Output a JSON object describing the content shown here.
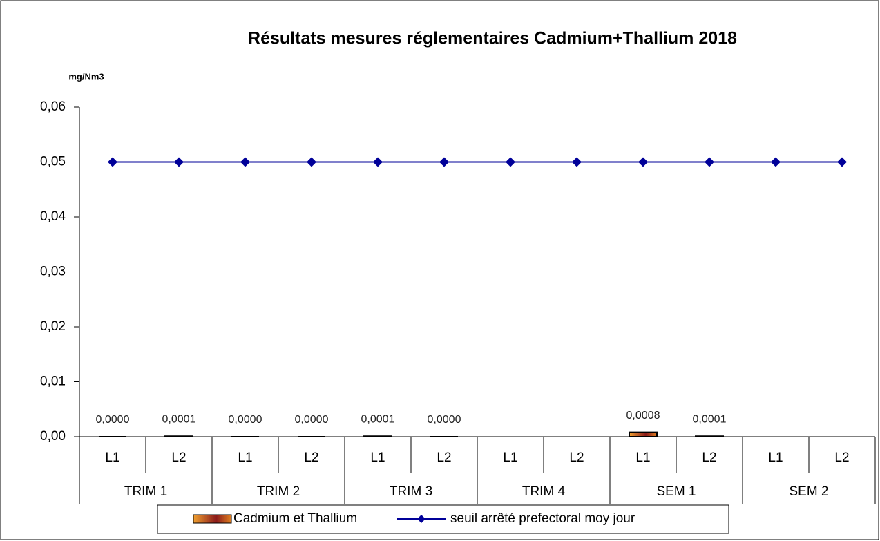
{
  "chart_data": {
    "type": "bar_line",
    "title": "Résultats mesures réglementaires Cadmium+Thallium  2018",
    "y_label": "mg/Nm3",
    "categories": [
      "L1",
      "L2",
      "L1",
      "L2",
      "L1",
      "L2",
      "L1",
      "L2",
      "L1",
      "L2",
      "L1",
      "L2"
    ],
    "groups": [
      "TRIM 1",
      "TRIM 2",
      "TRIM 3",
      "TRIM 4",
      "SEM 1",
      "SEM 2"
    ],
    "series": [
      {
        "name": "Cadmium et Thallium",
        "type": "bar",
        "color": "#e08020",
        "values": [
          0,
          0.0001,
          0,
          0,
          0.0001,
          0,
          null,
          null,
          0.0008,
          0.0001,
          null,
          null
        ],
        "value_labels": [
          "0,0000",
          "0,0001",
          "0,0000",
          "0,0000",
          "0,0001",
          "0,0000",
          null,
          null,
          "0,0008",
          "0,0001",
          null,
          null
        ]
      },
      {
        "name": "seuil arrêté prefectoral moy jour",
        "type": "line",
        "color": "#000099",
        "values": [
          0.05,
          0.05,
          0.05,
          0.05,
          0.05,
          0.05,
          0.05,
          0.05,
          0.05,
          0.05,
          0.05,
          0.05
        ]
      }
    ],
    "ylim": [
      0,
      0.06
    ],
    "yticks": [
      {
        "value": 0,
        "label": "0,00"
      },
      {
        "value": 0.01,
        "label": "0,01"
      },
      {
        "value": 0.02,
        "label": "0,02"
      },
      {
        "value": 0.03,
        "label": "0,03"
      },
      {
        "value": 0.04,
        "label": "0,04"
      },
      {
        "value": 0.05,
        "label": "0,05"
      },
      {
        "value": 0.06,
        "label": "0,06"
      }
    ]
  }
}
